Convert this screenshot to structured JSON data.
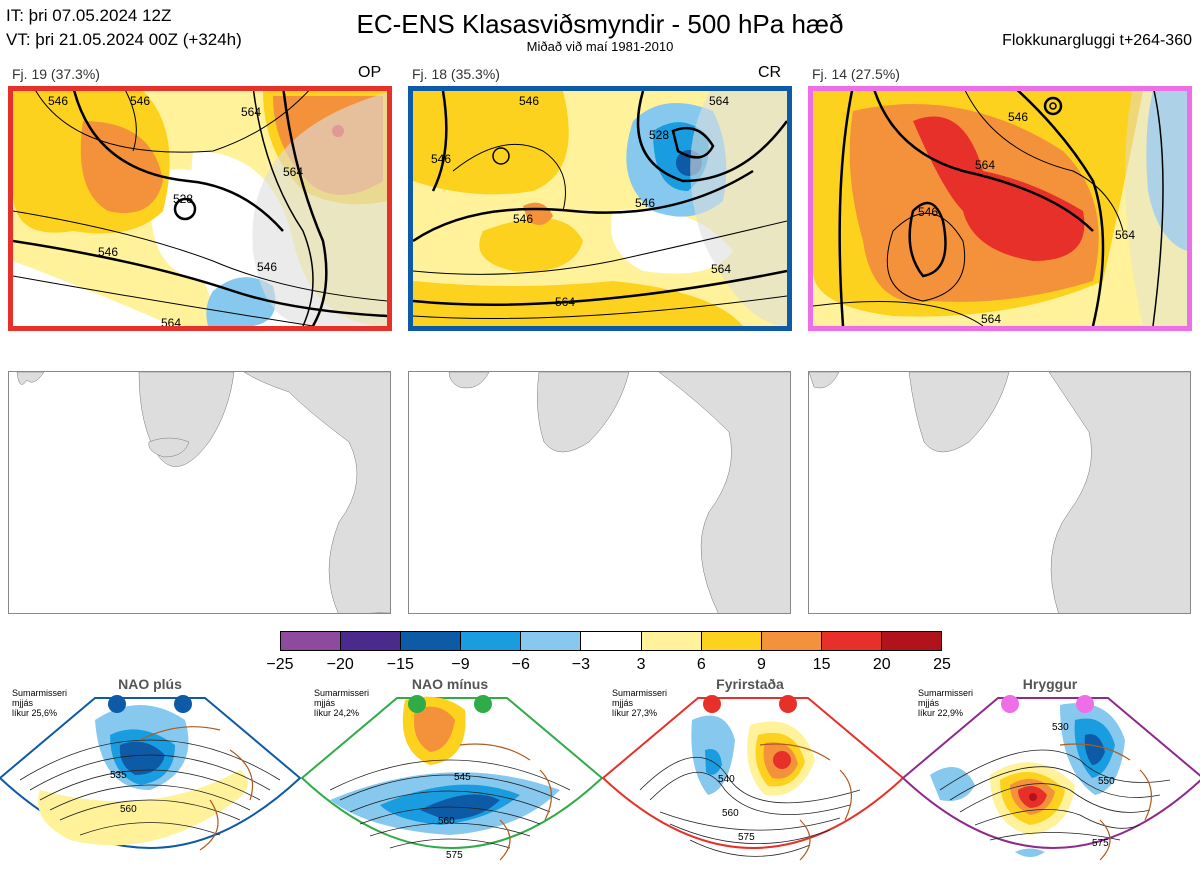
{
  "header": {
    "it": "IT: þri 07.05.2024 12Z",
    "vt": "VT: þri 21.05.2024 00Z  (+324h)",
    "title": "EC-ENS Klasasviðsmyndir - 500 hPa hæð",
    "subtitle": "Miðað við maí 1981-2010",
    "window": "Flokkunargluggi t+264-360"
  },
  "panels": [
    {
      "label": "Fj. 19 (37.3%)",
      "tag": "OP",
      "border_color": "#e8302a",
      "contours": [
        "546",
        "546",
        "528",
        "546",
        "546",
        "564",
        "564",
        "564"
      ]
    },
    {
      "label": "Fj. 18 (35.3%)",
      "tag": "CR",
      "border_color": "#0d5aa7",
      "contours": [
        "546",
        "546",
        "528",
        "546",
        "546",
        "564",
        "564",
        "564"
      ]
    },
    {
      "label": "Fj. 14 (27.5%)",
      "tag": "",
      "border_color": "#ee6ee8",
      "contours": [
        "546",
        "564",
        "546",
        "564",
        "564"
      ]
    }
  ],
  "colorbar": {
    "ticks": [
      "−25",
      "−20",
      "−15",
      "−9",
      "−6",
      "−3",
      "3",
      "6",
      "9",
      "15",
      "20",
      "25"
    ],
    "colors": [
      "#8e4a9c",
      "#4a2a8c",
      "#0d5aa7",
      "#1a9de0",
      "#86c8ee",
      "#ffffff",
      "#fff29a",
      "#fcd21e",
      "#f3923a",
      "#e8302a",
      "#b0141a"
    ]
  },
  "regimes": [
    {
      "name": "NAO plús",
      "note": [
        "Sumarmisseri",
        "mjjás",
        "líkur 25,6%"
      ],
      "color": "#0d5aa7",
      "dot_color": "#0d5aa7",
      "contours": [
        "535",
        "560"
      ]
    },
    {
      "name": "NAO mínus",
      "note": [
        "Sumarmisseri",
        "mjjás",
        "líkur 24,2%"
      ],
      "color": "#2fab48",
      "dot_color": "#2fab48",
      "contours": [
        "545",
        "560",
        "575"
      ]
    },
    {
      "name": "Fyrirstaða",
      "note": [
        "Sumarmisseri",
        "mjjás",
        "líkur 27,3%"
      ],
      "color": "#e8302a",
      "dot_color": "#e8302a",
      "contours": [
        "540",
        "560",
        "575"
      ]
    },
    {
      "name": "Hryggur",
      "note": [
        "Sumarmisseri",
        "mjjás",
        "líkur 22,9%"
      ],
      "color": "#8e2a8c",
      "dot_color": "#ee6ee8",
      "contours": [
        "530",
        "550",
        "575"
      ]
    }
  ]
}
